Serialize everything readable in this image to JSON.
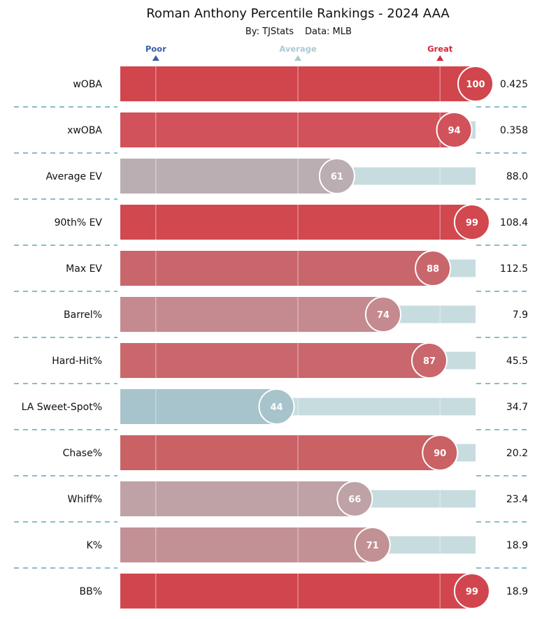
{
  "chart_data": {
    "type": "bar",
    "orientation": "horizontal",
    "title": "Roman Anthony Percentile Rankings - 2024 AAA",
    "subtitle": {
      "author": "By: TJStats",
      "source": "Data: MLB"
    },
    "xlim": [
      0,
      100
    ],
    "reference_markers": [
      {
        "label": "Poor",
        "value": 10,
        "color": "#3a5ea8"
      },
      {
        "label": "Average",
        "value": 50,
        "color": "#a8cbd1"
      },
      {
        "label": "Great",
        "value": 90,
        "color": "#d4283a"
      }
    ],
    "categories": [
      "wOBA",
      "xwOBA",
      "Average EV",
      "90th% EV",
      "Max EV",
      "Barrel%",
      "Hard-Hit%",
      "LA Sweet-Spot%",
      "Chase%",
      "Whiff%",
      "K%",
      "BB%"
    ],
    "series": [
      {
        "name": "Percentile",
        "values": [
          100,
          94,
          61,
          99,
          88,
          74,
          87,
          44,
          90,
          66,
          71,
          99
        ]
      }
    ],
    "stat_values": [
      "0.425",
      "0.358",
      "88.0",
      "108.4",
      "112.5",
      "7.9",
      "45.5",
      "34.7",
      "20.2",
      "23.4",
      "18.9",
      "18.9"
    ],
    "bar_colors": [
      "#d1454d",
      "#d1525a",
      "#bbaeb2",
      "#d1484f",
      "#c9666c",
      "#c48a8f",
      "#c9676d",
      "#a7c3cb",
      "#c96165",
      "#bea2a6",
      "#c29195",
      "#d1464e"
    ],
    "background_track_color": "#c7dcdf",
    "separator_color": "#3f96a8"
  }
}
